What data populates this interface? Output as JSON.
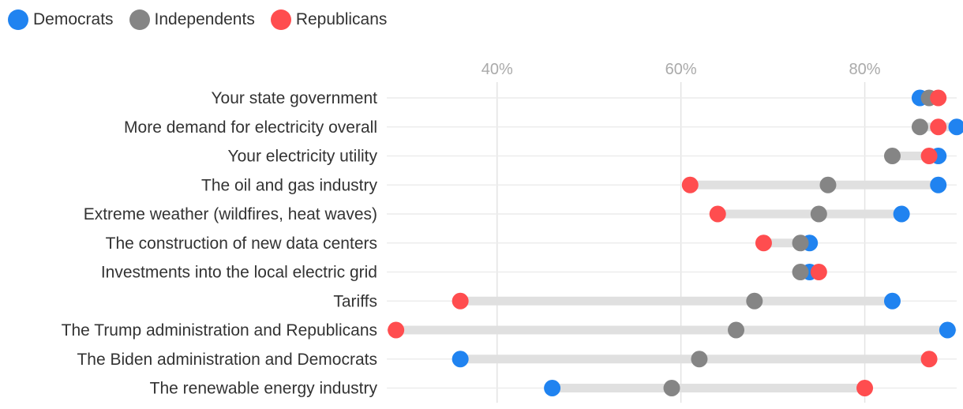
{
  "chart_data": {
    "type": "dot-range",
    "title": "",
    "xlabel": "",
    "ylabel": "",
    "xlim": [
      28,
      90
    ],
    "ticks": [
      {
        "value": 40,
        "label": "40%"
      },
      {
        "value": 60,
        "label": "60%"
      },
      {
        "value": 80,
        "label": "80%"
      }
    ],
    "legend": [
      "Democrats",
      "Independents",
      "Republicans"
    ],
    "series": [
      {
        "name": "Democrats",
        "color": "#2083f0"
      },
      {
        "name": "Independents",
        "color": "#858585"
      },
      {
        "name": "Republicans",
        "color": "#ff4d4f"
      }
    ],
    "categories": [
      "Your state government",
      "More demand for electricity overall",
      "Your electricity utility",
      "The oil and gas industry",
      "Extreme weather (wildfires, heat waves)",
      "The construction of new data centers",
      "Investments into the local electric grid",
      "Tariffs",
      "The Trump administration and Republicans",
      "The Biden administration and Democrats",
      "The renewable energy industry"
    ],
    "values": {
      "Democrats": [
        86,
        90,
        88,
        88,
        84,
        74,
        74,
        83,
        89,
        36,
        46
      ],
      "Independents": [
        87,
        86,
        83,
        76,
        75,
        73,
        73,
        68,
        66,
        62,
        59
      ],
      "Republicans": [
        88,
        88,
        87,
        61,
        64,
        69,
        75,
        36,
        29,
        87,
        80
      ]
    }
  }
}
